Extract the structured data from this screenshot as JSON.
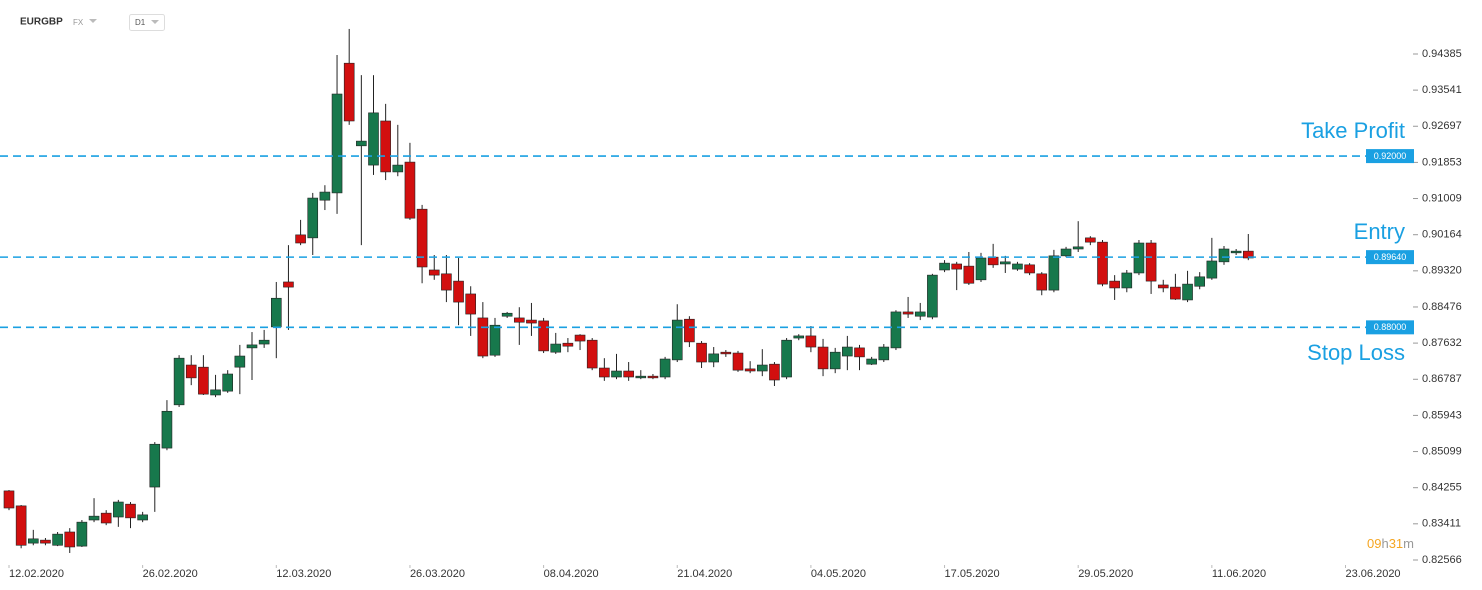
{
  "header": {
    "symbol": "EURGBP",
    "market": "FX",
    "timeframe": "D1"
  },
  "countdown": [
    "09",
    "h",
    "31",
    "m"
  ],
  "chart_data": {
    "type": "candlestick",
    "up_color": "#17784c",
    "down_color": "#d20f0f",
    "level_color": "#1aa0e2",
    "xlim": [
      -0.74,
      115.72
    ],
    "xticks": [
      {
        "value": 0,
        "label": "12.02.2020"
      },
      {
        "value": 11,
        "label": "26.02.2020"
      },
      {
        "value": 22,
        "label": "12.03.2020"
      },
      {
        "value": 33,
        "label": "26.03.2020"
      },
      {
        "value": 44,
        "label": "08.04.2020"
      },
      {
        "value": 55,
        "label": "21.04.2020"
      },
      {
        "value": 66,
        "label": "04.05.2020"
      },
      {
        "value": 77,
        "label": "17.05.2020"
      },
      {
        "value": 88,
        "label": "29.05.2020"
      },
      {
        "value": 99,
        "label": "11.06.2020"
      },
      {
        "value": 110,
        "label": "23.06.2020"
      }
    ],
    "ylim": [
      0.82449,
      0.95646
    ],
    "yticks": [
      0.94385,
      0.93541,
      0.92697,
      0.91853,
      0.91009,
      0.90164,
      {
        "value": 0.8932,
        "label": "0.89320"
      },
      0.88476,
      0.87632,
      0.86787,
      0.85943,
      0.85099,
      0.84255,
      0.83411,
      0.82566
    ],
    "levels": [
      {
        "name": "Take Profit",
        "value": 0.92,
        "value_label": "0.92000"
      },
      {
        "name": "Entry",
        "value": 0.8964,
        "value_label": "0.89640"
      },
      {
        "name": "Stop Loss",
        "value": 0.88,
        "value_label": "0.88000"
      }
    ],
    "open": [
      0.8418,
      0.8383,
      0.8296,
      0.8303,
      0.8291,
      0.8322,
      0.8289,
      0.835,
      0.8366,
      0.8357,
      0.8387,
      0.835,
      0.8427,
      0.8518,
      0.8619,
      0.8712,
      0.8707,
      0.8642,
      0.8651,
      0.8707,
      0.8752,
      0.8761,
      0.8801,
      0.8906,
      0.9016,
      0.9009,
      0.9097,
      0.9114,
      0.9417,
      0.9224,
      0.9179,
      0.9282,
      0.9163,
      0.9186,
      0.9076,
      0.8934,
      0.8925,
      0.8908,
      0.8878,
      0.8822,
      0.8735,
      0.8826,
      0.8822,
      0.8817,
      0.8815,
      0.8742,
      0.8763,
      0.8782,
      0.877,
      0.8705,
      0.8684,
      0.8698,
      0.8682,
      0.8686,
      0.8684,
      0.8724,
      0.8819,
      0.8763,
      0.8719,
      0.8742,
      0.874,
      0.8703,
      0.8698,
      0.8714,
      0.8684,
      0.8775,
      0.878,
      0.8754,
      0.8703,
      0.8733,
      0.8752,
      0.8714,
      0.8724,
      0.8752,
      0.8836,
      0.8826,
      0.8824,
      0.8934,
      0.8948,
      0.8943,
      0.8911,
      0.8964,
      0.8948,
      0.8936,
      0.8946,
      0.8925,
      0.8887,
      0.8967,
      0.8983,
      0.9009,
      0.8999,
      0.8908,
      0.8892,
      0.8927,
      0.8997,
      0.8899,
      0.8894,
      0.8864,
      0.8896,
      0.8915,
      0.8953,
      0.8974,
      0.8978
    ],
    "high": [
      0.842,
      0.8385,
      0.8327,
      0.8308,
      0.8322,
      0.8331,
      0.835,
      0.8401,
      0.8373,
      0.8397,
      0.8392,
      0.8369,
      0.8532,
      0.863,
      0.8735,
      0.8735,
      0.8735,
      0.8689,
      0.87,
      0.8759,
      0.8789,
      0.8794,
      0.8906,
      0.8992,
      0.9051,
      0.9114,
      0.9132,
      0.9436,
      0.9497,
      0.9389,
      0.9389,
      0.9322,
      0.9273,
      0.9231,
      0.9086,
      0.8969,
      0.8969,
      0.8962,
      0.8896,
      0.8859,
      0.8822,
      0.8836,
      0.8847,
      0.8857,
      0.8822,
      0.8787,
      0.8775,
      0.8784,
      0.8775,
      0.8728,
      0.8738,
      0.8719,
      0.87,
      0.8691,
      0.8731,
      0.8854,
      0.8826,
      0.8768,
      0.8754,
      0.8747,
      0.8745,
      0.8721,
      0.8749,
      0.8719,
      0.8775,
      0.8784,
      0.8803,
      0.8773,
      0.8752,
      0.878,
      0.8759,
      0.8731,
      0.8761,
      0.884,
      0.8871,
      0.8857,
      0.8925,
      0.8957,
      0.8953,
      0.8976,
      0.8974,
      0.8995,
      0.8967,
      0.8953,
      0.895,
      0.8929,
      0.8981,
      0.8988,
      0.9048,
      0.9013,
      0.9004,
      0.8922,
      0.8934,
      0.9004,
      0.9004,
      0.8911,
      0.8925,
      0.8932,
      0.8929,
      0.9009,
      0.899,
      0.8983,
      0.9018
    ],
    "low": [
      0.8373,
      0.8284,
      0.8291,
      0.8291,
      0.8289,
      0.8273,
      0.8287,
      0.8345,
      0.8338,
      0.8334,
      0.8331,
      0.8345,
      0.8369,
      0.8513,
      0.8614,
      0.8665,
      0.8642,
      0.8637,
      0.8647,
      0.8644,
      0.8677,
      0.8752,
      0.8728,
      0.8794,
      0.8992,
      0.8969,
      0.9074,
      0.9065,
      0.9273,
      0.8992,
      0.9156,
      0.9144,
      0.9153,
      0.9051,
      0.8903,
      0.8911,
      0.8859,
      0.8805,
      0.878,
      0.8728,
      0.8731,
      0.8822,
      0.8759,
      0.878,
      0.874,
      0.8738,
      0.8742,
      0.8747,
      0.87,
      0.8675,
      0.8679,
      0.8675,
      0.8679,
      0.8679,
      0.8679,
      0.8719,
      0.8754,
      0.8705,
      0.8707,
      0.8731,
      0.8696,
      0.8693,
      0.8686,
      0.8663,
      0.8679,
      0.877,
      0.8742,
      0.8686,
      0.8693,
      0.87,
      0.87,
      0.8712,
      0.8719,
      0.8747,
      0.8822,
      0.8817,
      0.8819,
      0.8929,
      0.8887,
      0.8899,
      0.8906,
      0.8939,
      0.8927,
      0.8932,
      0.8922,
      0.8875,
      0.8882,
      0.8964,
      0.8976,
      0.8992,
      0.8896,
      0.8864,
      0.8882,
      0.8922,
      0.8878,
      0.8882,
      0.8864,
      0.8859,
      0.8889,
      0.8911,
      0.8946,
      0.8969,
      0.8957
    ],
    "close": [
      0.8378,
      0.8291,
      0.8306,
      0.8296,
      0.8317,
      0.8287,
      0.8345,
      0.8359,
      0.8343,
      0.8392,
      0.8355,
      0.8362,
      0.8527,
      0.8604,
      0.8728,
      0.8682,
      0.8644,
      0.8654,
      0.8691,
      0.8733,
      0.8759,
      0.877,
      0.8868,
      0.8894,
      0.8997,
      0.9102,
      0.9116,
      0.9345,
      0.9282,
      0.9235,
      0.9301,
      0.9163,
      0.9179,
      0.9055,
      0.8941,
      0.8922,
      0.8887,
      0.8859,
      0.8831,
      0.8733,
      0.8805,
      0.8833,
      0.8812,
      0.881,
      0.8745,
      0.8761,
      0.8756,
      0.8768,
      0.8705,
      0.8684,
      0.8698,
      0.8684,
      0.8686,
      0.8682,
      0.8726,
      0.8817,
      0.8766,
      0.8719,
      0.8738,
      0.8738,
      0.87,
      0.8698,
      0.8712,
      0.8677,
      0.877,
      0.878,
      0.8754,
      0.8703,
      0.8742,
      0.8754,
      0.8731,
      0.8726,
      0.8754,
      0.8836,
      0.8831,
      0.8836,
      0.8922,
      0.895,
      0.8936,
      0.8903,
      0.8962,
      0.8946,
      0.8953,
      0.8948,
      0.8927,
      0.8887,
      0.8967,
      0.8983,
      0.8988,
      0.8999,
      0.8901,
      0.8892,
      0.8927,
      0.8997,
      0.8908,
      0.8892,
      0.8866,
      0.8901,
      0.8918,
      0.8955,
      0.8983,
      0.8978,
      0.8962
    ]
  }
}
